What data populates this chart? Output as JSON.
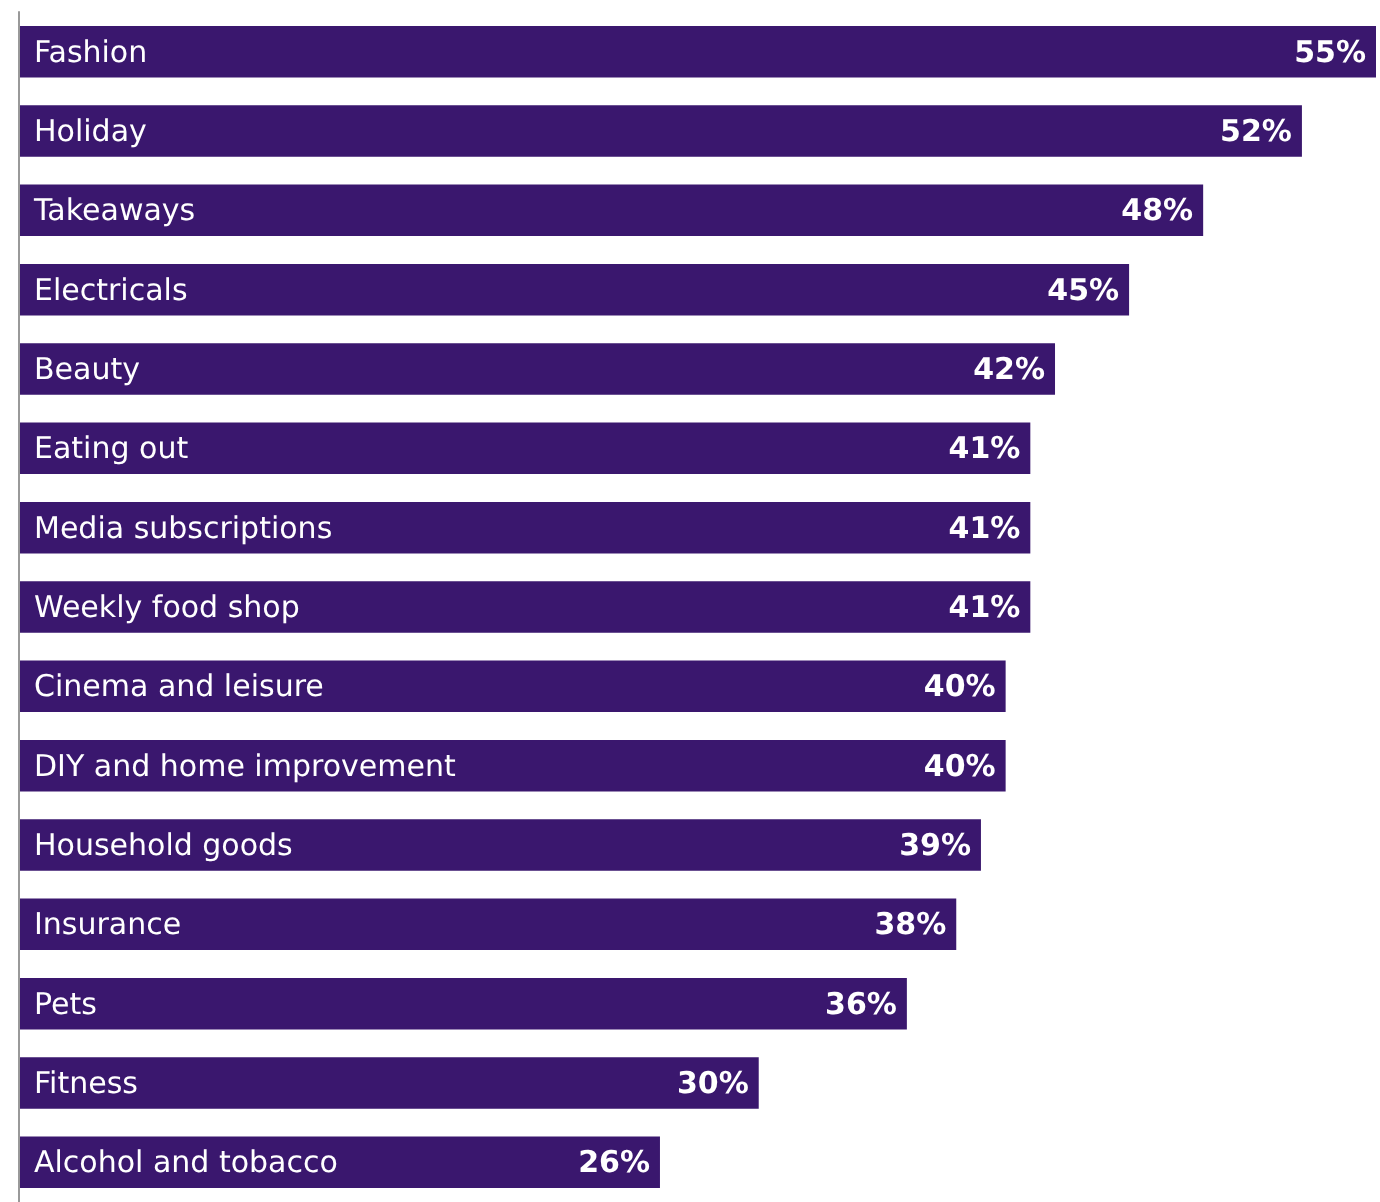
{
  "chart_data": {
    "type": "bar",
    "orientation": "horizontal",
    "categories": [
      "Fashion",
      "Holiday",
      "Takeaways",
      "Electricals",
      "Beauty",
      "Eating out",
      "Media subscriptions",
      "Weekly food shop",
      "Cinema and leisure",
      "DIY and home improvement",
      "Household goods",
      "Insurance",
      "Pets",
      "Fitness",
      "Alcohol and tobacco"
    ],
    "values": [
      55,
      52,
      48,
      45,
      42,
      41,
      41,
      41,
      40,
      40,
      39,
      38,
      36,
      30,
      26
    ],
    "value_labels": [
      "55%",
      "52%",
      "48%",
      "45%",
      "42%",
      "41%",
      "41%",
      "41%",
      "40%",
      "40%",
      "39%",
      "38%",
      "36%",
      "30%",
      "26%"
    ],
    "color": "#3a176e"
  }
}
